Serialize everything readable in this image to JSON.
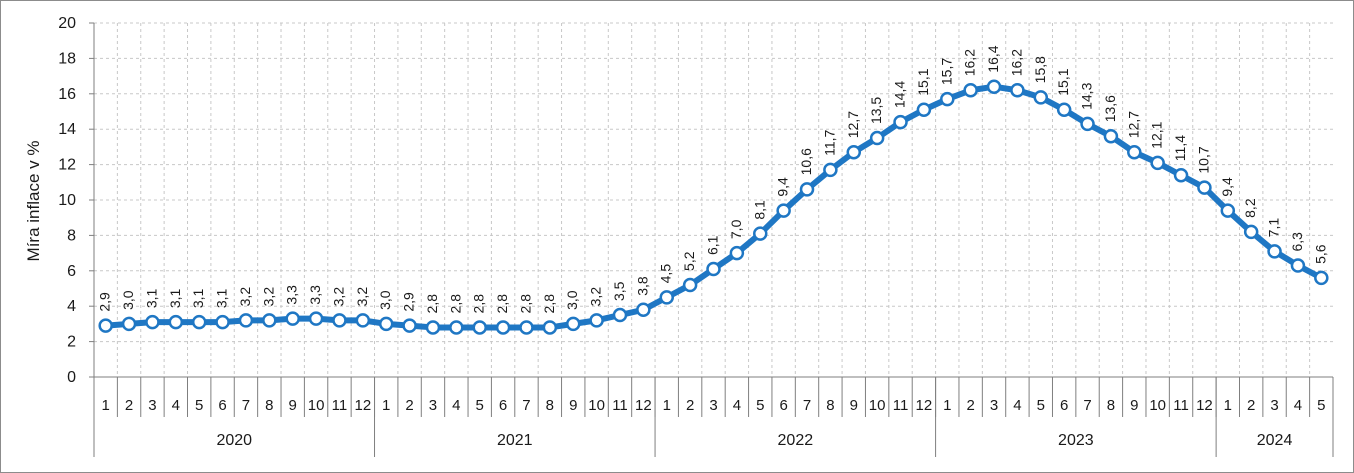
{
  "chart_data": {
    "type": "line",
    "ylabel": "Míra inflace v %",
    "xlabel": "",
    "ylim": [
      0,
      20
    ],
    "yticks": [
      0,
      2,
      4,
      6,
      8,
      10,
      12,
      14,
      16,
      18,
      20
    ],
    "grid": true,
    "line_color": "#1f77c4",
    "marker_fill": "#ffffff",
    "years": [
      {
        "label": "2020",
        "months": 12
      },
      {
        "label": "2021",
        "months": 12
      },
      {
        "label": "2022",
        "months": 12
      },
      {
        "label": "2023",
        "months": 12
      },
      {
        "label": "2024",
        "months": 5
      }
    ],
    "months": [
      "1",
      "2",
      "3",
      "4",
      "5",
      "6",
      "7",
      "8",
      "9",
      "10",
      "11",
      "12",
      "1",
      "2",
      "3",
      "4",
      "5",
      "6",
      "7",
      "8",
      "9",
      "10",
      "11",
      "12",
      "1",
      "2",
      "3",
      "4",
      "5",
      "6",
      "7",
      "8",
      "9",
      "10",
      "11",
      "12",
      "1",
      "2",
      "3",
      "4",
      "5",
      "6",
      "7",
      "8",
      "9",
      "10",
      "11",
      "12",
      "1",
      "2",
      "3",
      "4",
      "5"
    ],
    "values": [
      2.9,
      3.0,
      3.1,
      3.1,
      3.1,
      3.1,
      3.2,
      3.2,
      3.3,
      3.3,
      3.2,
      3.2,
      3.0,
      2.9,
      2.8,
      2.8,
      2.8,
      2.8,
      2.8,
      2.8,
      3.0,
      3.2,
      3.5,
      3.8,
      4.5,
      5.2,
      6.1,
      7.0,
      8.1,
      9.4,
      10.6,
      11.7,
      12.7,
      13.5,
      14.4,
      15.1,
      15.7,
      16.2,
      16.4,
      16.2,
      15.8,
      15.1,
      14.3,
      13.6,
      12.7,
      12.1,
      11.4,
      10.7,
      9.4,
      8.2,
      7.1,
      6.3,
      5.6
    ],
    "labels": [
      "2,9",
      "3,0",
      "3,1",
      "3,1",
      "3,1",
      "3,1",
      "3,2",
      "3,2",
      "3,3",
      "3,3",
      "3,2",
      "3,2",
      "3,0",
      "2,9",
      "2,8",
      "2,8",
      "2,8",
      "2,8",
      "2,8",
      "2,8",
      "3,0",
      "3,2",
      "3,5",
      "3,8",
      "4,5",
      "5,2",
      "6,1",
      "7,0",
      "8,1",
      "9,4",
      "10,6",
      "11,7",
      "12,7",
      "13,5",
      "14,4",
      "15,1",
      "15,7",
      "16,2",
      "16,4",
      "16,2",
      "15,8",
      "15,1",
      "14,3",
      "13,6",
      "12,7",
      "12,1",
      "11,4",
      "10,7",
      "9,4",
      "8,2",
      "7,1",
      "6,3",
      "5,6"
    ]
  }
}
